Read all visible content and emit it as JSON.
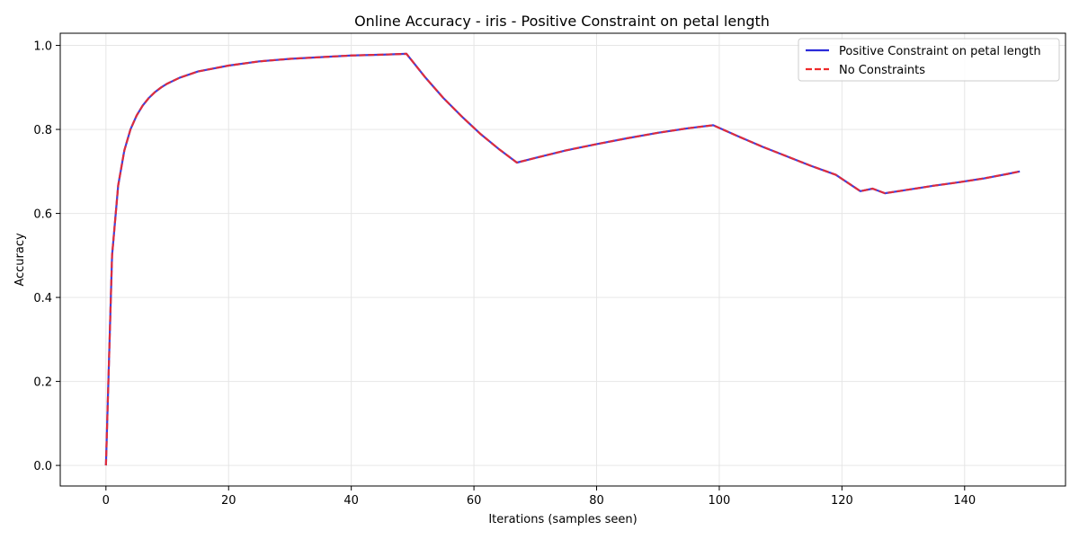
{
  "chart_data": {
    "type": "line",
    "title": "Online Accuracy - iris - Positive Constraint on petal length",
    "xlabel": "Iterations (samples seen)",
    "ylabel": "Accuracy",
    "xlim": [
      -7.45,
      156.45
    ],
    "ylim": [
      -0.049,
      1.029
    ],
    "xticks": [
      0,
      20,
      40,
      60,
      80,
      100,
      120,
      140
    ],
    "yticks": [
      0.0,
      0.2,
      0.4,
      0.6,
      0.8,
      1.0
    ],
    "xtick_labels": [
      "0",
      "20",
      "40",
      "60",
      "80",
      "100",
      "120",
      "140"
    ],
    "ytick_labels": [
      "0.0",
      "0.2",
      "0.4",
      "0.6",
      "0.8",
      "1.0"
    ],
    "grid": true,
    "legend_position": "top-right",
    "series": [
      {
        "name": "Positive Constraint on petal length",
        "color": "#2b2bd9",
        "style": "solid",
        "x": [
          0,
          1,
          2,
          3,
          4,
          5,
          6,
          7,
          8,
          9,
          10,
          12,
          15,
          20,
          25,
          30,
          35,
          40,
          45,
          49,
          52,
          55,
          58,
          61,
          64,
          67,
          70,
          75,
          80,
          85,
          90,
          95,
          99,
          103,
          107,
          111,
          115,
          119,
          123,
          125,
          127,
          131,
          135,
          139,
          143,
          147,
          149
        ],
        "y": [
          0.0,
          0.5,
          0.667,
          0.75,
          0.8,
          0.833,
          0.857,
          0.875,
          0.889,
          0.9,
          0.909,
          0.923,
          0.938,
          0.952,
          0.962,
          0.968,
          0.972,
          0.976,
          0.978,
          0.98,
          0.925,
          0.875,
          0.831,
          0.79,
          0.754,
          0.721,
          0.732,
          0.75,
          0.765,
          0.779,
          0.792,
          0.803,
          0.81,
          0.784,
          0.759,
          0.736,
          0.713,
          0.692,
          0.653,
          0.659,
          0.648,
          0.657,
          0.666,
          0.674,
          0.683,
          0.694,
          0.7
        ]
      },
      {
        "name": "No Constraints",
        "color": "#ee2a2a",
        "style": "dashed",
        "x": [
          0,
          1,
          2,
          3,
          4,
          5,
          6,
          7,
          8,
          9,
          10,
          12,
          15,
          20,
          25,
          30,
          35,
          40,
          45,
          49,
          52,
          55,
          58,
          61,
          64,
          67,
          70,
          75,
          80,
          85,
          90,
          95,
          99,
          103,
          107,
          111,
          115,
          119,
          123,
          125,
          127,
          131,
          135,
          139,
          143,
          147,
          149
        ],
        "y": [
          0.0,
          0.5,
          0.667,
          0.75,
          0.8,
          0.833,
          0.857,
          0.875,
          0.889,
          0.9,
          0.909,
          0.923,
          0.938,
          0.952,
          0.962,
          0.968,
          0.972,
          0.976,
          0.978,
          0.98,
          0.925,
          0.875,
          0.831,
          0.79,
          0.754,
          0.721,
          0.732,
          0.75,
          0.765,
          0.779,
          0.792,
          0.803,
          0.81,
          0.784,
          0.759,
          0.736,
          0.713,
          0.692,
          0.653,
          0.659,
          0.648,
          0.657,
          0.666,
          0.674,
          0.683,
          0.694,
          0.7
        ]
      }
    ]
  }
}
